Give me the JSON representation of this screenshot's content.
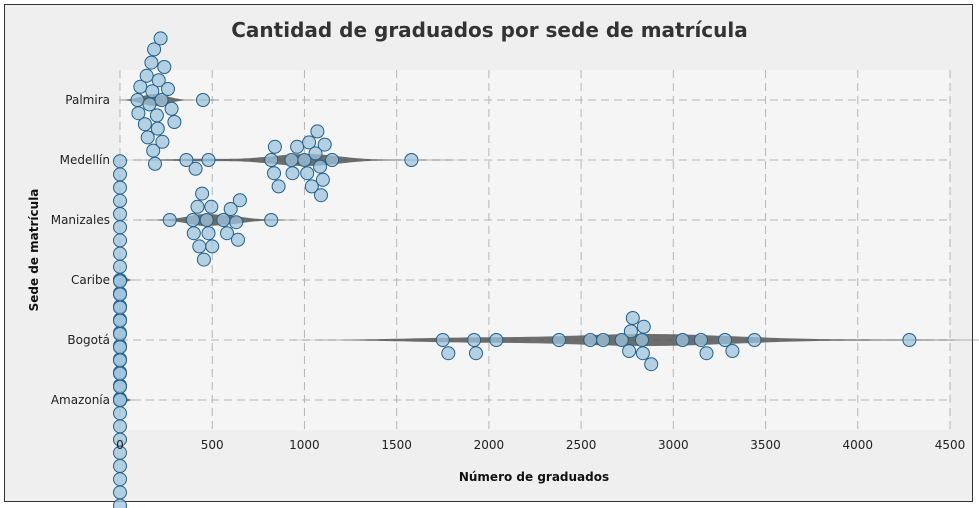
{
  "chart_data": {
    "type": "scatter",
    "title": "Cantidad de graduados por sede de matrícula",
    "xlabel": "Número de graduados",
    "ylabel": "Sede de matrícula",
    "xlim": [
      0,
      4500
    ],
    "xticks": [
      0,
      500,
      1000,
      1500,
      2000,
      2500,
      3000,
      3500,
      4000,
      4500
    ],
    "xtick_labels": [
      "0",
      "500",
      "1000",
      "1500",
      "2000",
      "2500",
      "3000",
      "3500",
      "4000",
      "4500"
    ],
    "categories": [
      "Palmira",
      "Medellín",
      "Manizales",
      "Caribe",
      "Bogotá",
      "Amazonía"
    ],
    "grid": true,
    "marker_color": "#9ec3dc",
    "marker_edge_color": "#1f5f8b",
    "violin_color": "#555555",
    "series": [
      {
        "category": "Palmira",
        "values": [
          95,
          100,
          110,
          135,
          145,
          150,
          160,
          170,
          175,
          180,
          185,
          190,
          200,
          205,
          210,
          220,
          225,
          230,
          240,
          260,
          280,
          295,
          450
        ]
      },
      {
        "category": "Medellín",
        "values": [
          360,
          410,
          480,
          820,
          835,
          840,
          860,
          930,
          935,
          960,
          1000,
          1015,
          1025,
          1040,
          1060,
          1070,
          1085,
          1090,
          1100,
          1110,
          1150,
          1580
        ]
      },
      {
        "category": "Manizales",
        "values": [
          270,
          395,
          400,
          420,
          430,
          445,
          455,
          470,
          480,
          495,
          500,
          560,
          580,
          600,
          630,
          640,
          650,
          820
        ]
      },
      {
        "category": "Caribe",
        "values": [
          0,
          0,
          0,
          0,
          0,
          0,
          0,
          0,
          0,
          0,
          0,
          0,
          0,
          0,
          0,
          0,
          0,
          0,
          0,
          0
        ]
      },
      {
        "category": "Bogotá",
        "values": [
          1750,
          1780,
          1920,
          1930,
          2040,
          2380,
          2550,
          2620,
          2720,
          2760,
          2770,
          2780,
          2830,
          2835,
          2840,
          2880,
          3050,
          3150,
          3180,
          3280,
          3320,
          3440,
          4280
        ]
      },
      {
        "category": "Amazonía",
        "values": [
          0,
          0,
          0,
          0,
          0,
          0,
          0,
          0,
          0,
          0,
          0,
          0,
          0,
          0,
          0,
          0,
          0,
          0,
          0,
          0,
          0,
          0,
          0,
          0,
          0
        ]
      }
    ]
  }
}
